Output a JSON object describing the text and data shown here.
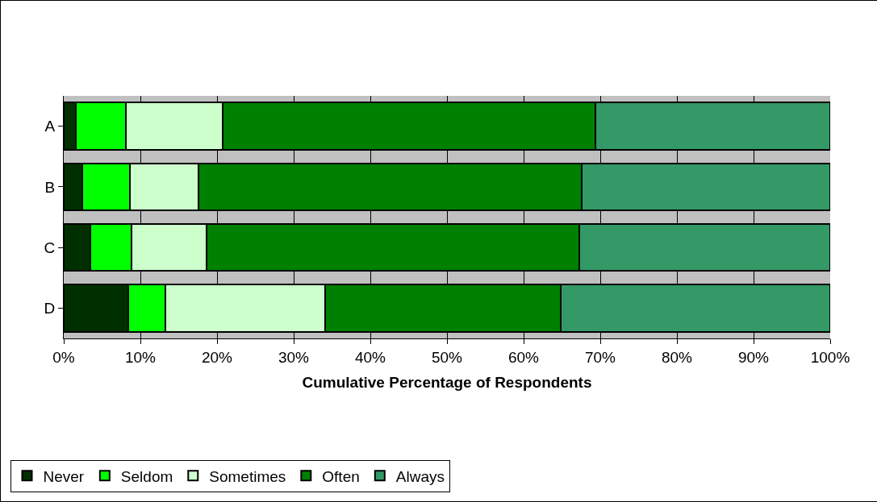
{
  "chart_data": {
    "type": "bar",
    "orientation": "horizontal",
    "stacked": true,
    "categories": [
      "A",
      "B",
      "C",
      "D"
    ],
    "xlabel": "Cumulative Percentage of Respondents",
    "series": [
      {
        "name": "Never",
        "color": "#003000",
        "values": [
          1.6,
          2.4,
          3.5,
          8.4
        ]
      },
      {
        "name": "Seldom",
        "color": "#00ff00",
        "values": [
          6.5,
          6.2,
          5.3,
          4.9
        ]
      },
      {
        "name": "Sometimes",
        "color": "#ccffcc",
        "values": [
          12.6,
          9.0,
          9.8,
          20.8
        ]
      },
      {
        "name": "Often",
        "color": "#008000",
        "values": [
          48.7,
          50.0,
          48.7,
          30.7
        ]
      },
      {
        "name": "Always",
        "color": "#339966",
        "values": [
          30.6,
          32.4,
          32.7,
          35.2
        ]
      }
    ],
    "xlim": [
      0,
      100
    ],
    "xticks": [
      {
        "value": 0,
        "label": "0%"
      },
      {
        "value": 10,
        "label": "10%"
      },
      {
        "value": 20,
        "label": "20%"
      },
      {
        "value": 30,
        "label": "30%"
      },
      {
        "value": 40,
        "label": "40%"
      },
      {
        "value": 50,
        "label": "50%"
      },
      {
        "value": 60,
        "label": "60%"
      },
      {
        "value": 70,
        "label": "70%"
      },
      {
        "value": 80,
        "label": "80%"
      },
      {
        "value": 90,
        "label": "90%"
      },
      {
        "value": 100,
        "label": "100%"
      }
    ],
    "grid": "x",
    "legend": "bottom left"
  }
}
